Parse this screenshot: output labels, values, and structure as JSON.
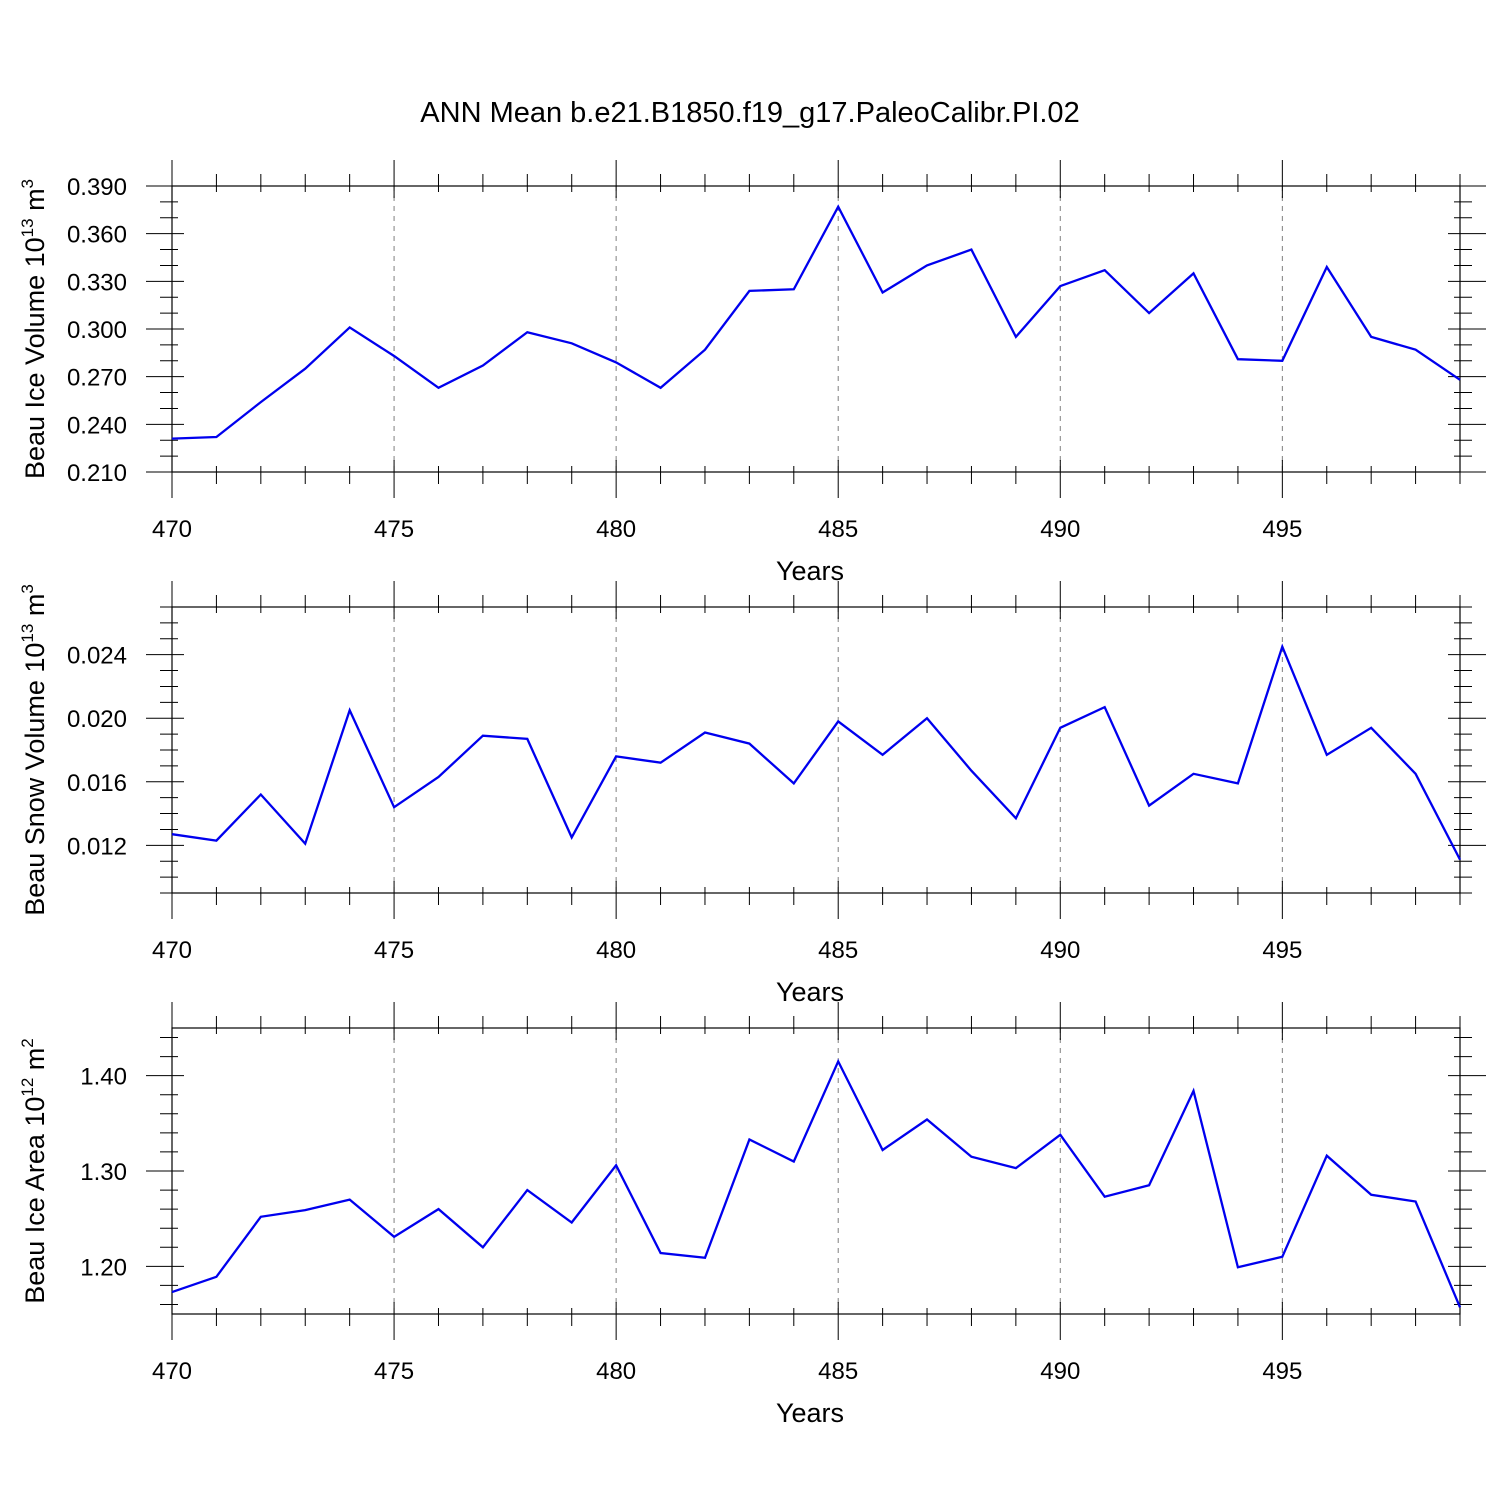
{
  "title": "ANN Mean b.e21.B1850.f19_g17.PaleoCalibr.PI.02",
  "colors": {
    "line": "#0000ee",
    "grid": "#7f7f7f",
    "axis": "#000000"
  },
  "chart_data": [
    {
      "type": "line",
      "ylabel": "Beau Ice Volume 10",
      "ylabel_exp": "13",
      "ylabel_unit": " m",
      "ylabel_unit_exp": "3",
      "xlabel": "Years",
      "xlim": [
        470,
        499
      ],
      "ylim": [
        0.21,
        0.39
      ],
      "y_major_ticks": [
        0.21,
        0.24,
        0.27,
        0.3,
        0.33,
        0.36,
        0.39
      ],
      "y_tick_labels": [
        "0.210",
        "0.240",
        "0.270",
        "0.300",
        "0.330",
        "0.360",
        "0.390"
      ],
      "y_minor_step": 0.01,
      "x_major_ticks": [
        470,
        475,
        480,
        485,
        490,
        495
      ],
      "x_tick_labels": [
        "470",
        "475",
        "480",
        "485",
        "490",
        "495"
      ],
      "grid_x": [
        475,
        480,
        485,
        490,
        495
      ],
      "x": [
        470,
        471,
        472,
        473,
        474,
        475,
        476,
        477,
        478,
        479,
        480,
        481,
        482,
        483,
        484,
        485,
        486,
        487,
        488,
        489,
        490,
        491,
        492,
        493,
        494,
        495,
        496,
        497,
        498,
        499
      ],
      "values": [
        0.231,
        0.232,
        0.254,
        0.275,
        0.301,
        0.283,
        0.263,
        0.277,
        0.298,
        0.291,
        0.279,
        0.263,
        0.287,
        0.324,
        0.325,
        0.377,
        0.323,
        0.34,
        0.35,
        0.295,
        0.327,
        0.337,
        0.31,
        0.335,
        0.281,
        0.28,
        0.339,
        0.295,
        0.287,
        0.268
      ]
    },
    {
      "type": "line",
      "ylabel": "Beau Snow Volume 10",
      "ylabel_exp": "13",
      "ylabel_unit": " m",
      "ylabel_unit_exp": "3",
      "xlabel": "Years",
      "xlim": [
        470,
        499
      ],
      "ylim": [
        0.009,
        0.027
      ],
      "y_major_ticks": [
        0.012,
        0.016,
        0.02,
        0.024
      ],
      "y_tick_labels": [
        "0.012",
        "0.016",
        "0.020",
        "0.024"
      ],
      "y_minor_step": 0.001,
      "x_major_ticks": [
        470,
        475,
        480,
        485,
        490,
        495
      ],
      "x_tick_labels": [
        "470",
        "475",
        "480",
        "485",
        "490",
        "495"
      ],
      "grid_x": [
        475,
        480,
        485,
        490,
        495
      ],
      "x": [
        470,
        471,
        472,
        473,
        474,
        475,
        476,
        477,
        478,
        479,
        480,
        481,
        482,
        483,
        484,
        485,
        486,
        487,
        488,
        489,
        490,
        491,
        492,
        493,
        494,
        495,
        496,
        497,
        498,
        499
      ],
      "values": [
        0.0127,
        0.0123,
        0.0152,
        0.0121,
        0.0205,
        0.0144,
        0.0163,
        0.0189,
        0.0187,
        0.0125,
        0.0176,
        0.0172,
        0.0191,
        0.0184,
        0.0159,
        0.0198,
        0.0177,
        0.02,
        0.0167,
        0.0137,
        0.0194,
        0.0207,
        0.0145,
        0.0165,
        0.0159,
        0.0245,
        0.0177,
        0.0194,
        0.0165,
        0.0111
      ]
    },
    {
      "type": "line",
      "ylabel": "Beau Ice Area 10",
      "ylabel_exp": "12",
      "ylabel_unit": " m",
      "ylabel_unit_exp": "2",
      "xlabel": "Years",
      "xlim": [
        470,
        499
      ],
      "ylim": [
        1.15,
        1.45
      ],
      "y_major_ticks": [
        1.2,
        1.3,
        1.4
      ],
      "y_tick_labels": [
        "1.20",
        "1.30",
        "1.40"
      ],
      "y_minor_step": 0.02,
      "x_major_ticks": [
        470,
        475,
        480,
        485,
        490,
        495
      ],
      "x_tick_labels": [
        "470",
        "475",
        "480",
        "485",
        "490",
        "495"
      ],
      "grid_x": [
        475,
        480,
        485,
        490,
        495
      ],
      "x": [
        470,
        471,
        472,
        473,
        474,
        475,
        476,
        477,
        478,
        479,
        480,
        481,
        482,
        483,
        484,
        485,
        486,
        487,
        488,
        489,
        490,
        491,
        492,
        493,
        494,
        495,
        496,
        497,
        498,
        499
      ],
      "values": [
        1.173,
        1.189,
        1.252,
        1.259,
        1.27,
        1.231,
        1.26,
        1.22,
        1.28,
        1.246,
        1.306,
        1.214,
        1.209,
        1.333,
        1.31,
        1.415,
        1.322,
        1.354,
        1.315,
        1.303,
        1.338,
        1.273,
        1.285,
        1.384,
        1.199,
        1.21,
        1.316,
        1.275,
        1.268,
        1.157
      ]
    }
  ]
}
